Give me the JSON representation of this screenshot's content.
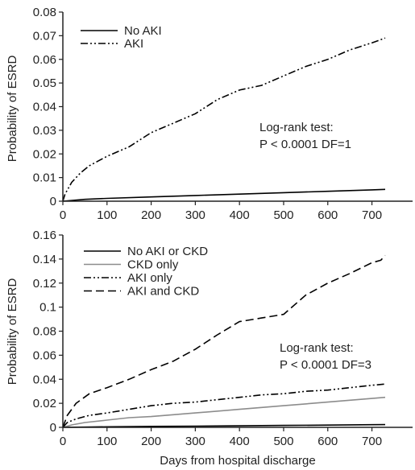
{
  "chart_data": [
    {
      "type": "line",
      "ylabel": "Probability of ESRD",
      "xlabel": "",
      "xlim": [
        0,
        730
      ],
      "ylim": [
        0,
        0.08
      ],
      "xticks": [
        "0",
        "100",
        "200",
        "300",
        "400",
        "500",
        "600",
        "700"
      ],
      "yticks": [
        "0",
        "0.01",
        "0.02",
        "0.03",
        "0.04",
        "0.05",
        "0.06",
        "0.07",
        "0.08"
      ],
      "legend_position": "top-left",
      "annotation": [
        "Log-rank test:",
        "P < 0.0001 DF=1"
      ],
      "series": [
        {
          "name": "No AKI",
          "color": "#000000",
          "dash": "solid",
          "x": [
            0,
            50,
            100,
            200,
            300,
            400,
            500,
            600,
            700,
            730
          ],
          "y": [
            0,
            0.0008,
            0.0012,
            0.0018,
            0.0024,
            0.003,
            0.0036,
            0.0042,
            0.0048,
            0.005
          ]
        },
        {
          "name": "AKI",
          "color": "#000000",
          "dash": "dash-dot-dot",
          "x": [
            0,
            5,
            20,
            40,
            60,
            80,
            100,
            150,
            200,
            250,
            300,
            350,
            400,
            450,
            500,
            550,
            600,
            650,
            700,
            730
          ],
          "y": [
            0,
            0.003,
            0.008,
            0.012,
            0.015,
            0.017,
            0.019,
            0.023,
            0.029,
            0.033,
            0.037,
            0.043,
            0.047,
            0.049,
            0.053,
            0.057,
            0.06,
            0.064,
            0.067,
            0.069
          ]
        }
      ]
    },
    {
      "type": "line",
      "ylabel": "Probability of ESRD",
      "xlabel": "Days from hospital discharge",
      "xlim": [
        0,
        730
      ],
      "ylim": [
        0,
        0.16
      ],
      "xticks": [
        "0",
        "100",
        "200",
        "300",
        "400",
        "500",
        "600",
        "700"
      ],
      "yticks": [
        "0",
        "0.02",
        "0.04",
        "0.06",
        "0.08",
        "0.1",
        "0.12",
        "0.14",
        "0.16"
      ],
      "legend_position": "top-center",
      "annotation": [
        "Log-rank test:",
        "P < 0.0001 DF=3"
      ],
      "series": [
        {
          "name": "No AKI or CKD",
          "color": "#000000",
          "dash": "solid",
          "x": [
            0,
            100,
            200,
            300,
            400,
            500,
            600,
            700,
            730
          ],
          "y": [
            0,
            0.0005,
            0.0008,
            0.001,
            0.0013,
            0.0016,
            0.0019,
            0.0022,
            0.0023
          ]
        },
        {
          "name": "CKD only",
          "color": "#8c8c8c",
          "dash": "solid",
          "x": [
            0,
            20,
            50,
            100,
            150,
            200,
            300,
            400,
            500,
            600,
            700,
            730
          ],
          "y": [
            0,
            0.002,
            0.004,
            0.006,
            0.008,
            0.009,
            0.012,
            0.015,
            0.018,
            0.021,
            0.024,
            0.025
          ]
        },
        {
          "name": "AKI only",
          "color": "#000000",
          "dash": "dash-dot-dot",
          "x": [
            0,
            10,
            30,
            60,
            100,
            150,
            200,
            250,
            300,
            350,
            400,
            450,
            500,
            550,
            600,
            650,
            700,
            730
          ],
          "y": [
            0,
            0.004,
            0.007,
            0.01,
            0.012,
            0.015,
            0.018,
            0.02,
            0.021,
            0.023,
            0.025,
            0.027,
            0.028,
            0.03,
            0.031,
            0.033,
            0.035,
            0.036
          ]
        },
        {
          "name": "AKI and CKD",
          "color": "#000000",
          "dash": "dashed",
          "x": [
            0,
            10,
            30,
            60,
            100,
            150,
            200,
            250,
            300,
            350,
            400,
            450,
            500,
            550,
            600,
            650,
            700,
            720,
            730
          ],
          "y": [
            0,
            0.01,
            0.02,
            0.028,
            0.033,
            0.04,
            0.048,
            0.055,
            0.065,
            0.077,
            0.088,
            0.091,
            0.094,
            0.11,
            0.12,
            0.128,
            0.137,
            0.139,
            0.143
          ]
        }
      ]
    }
  ]
}
